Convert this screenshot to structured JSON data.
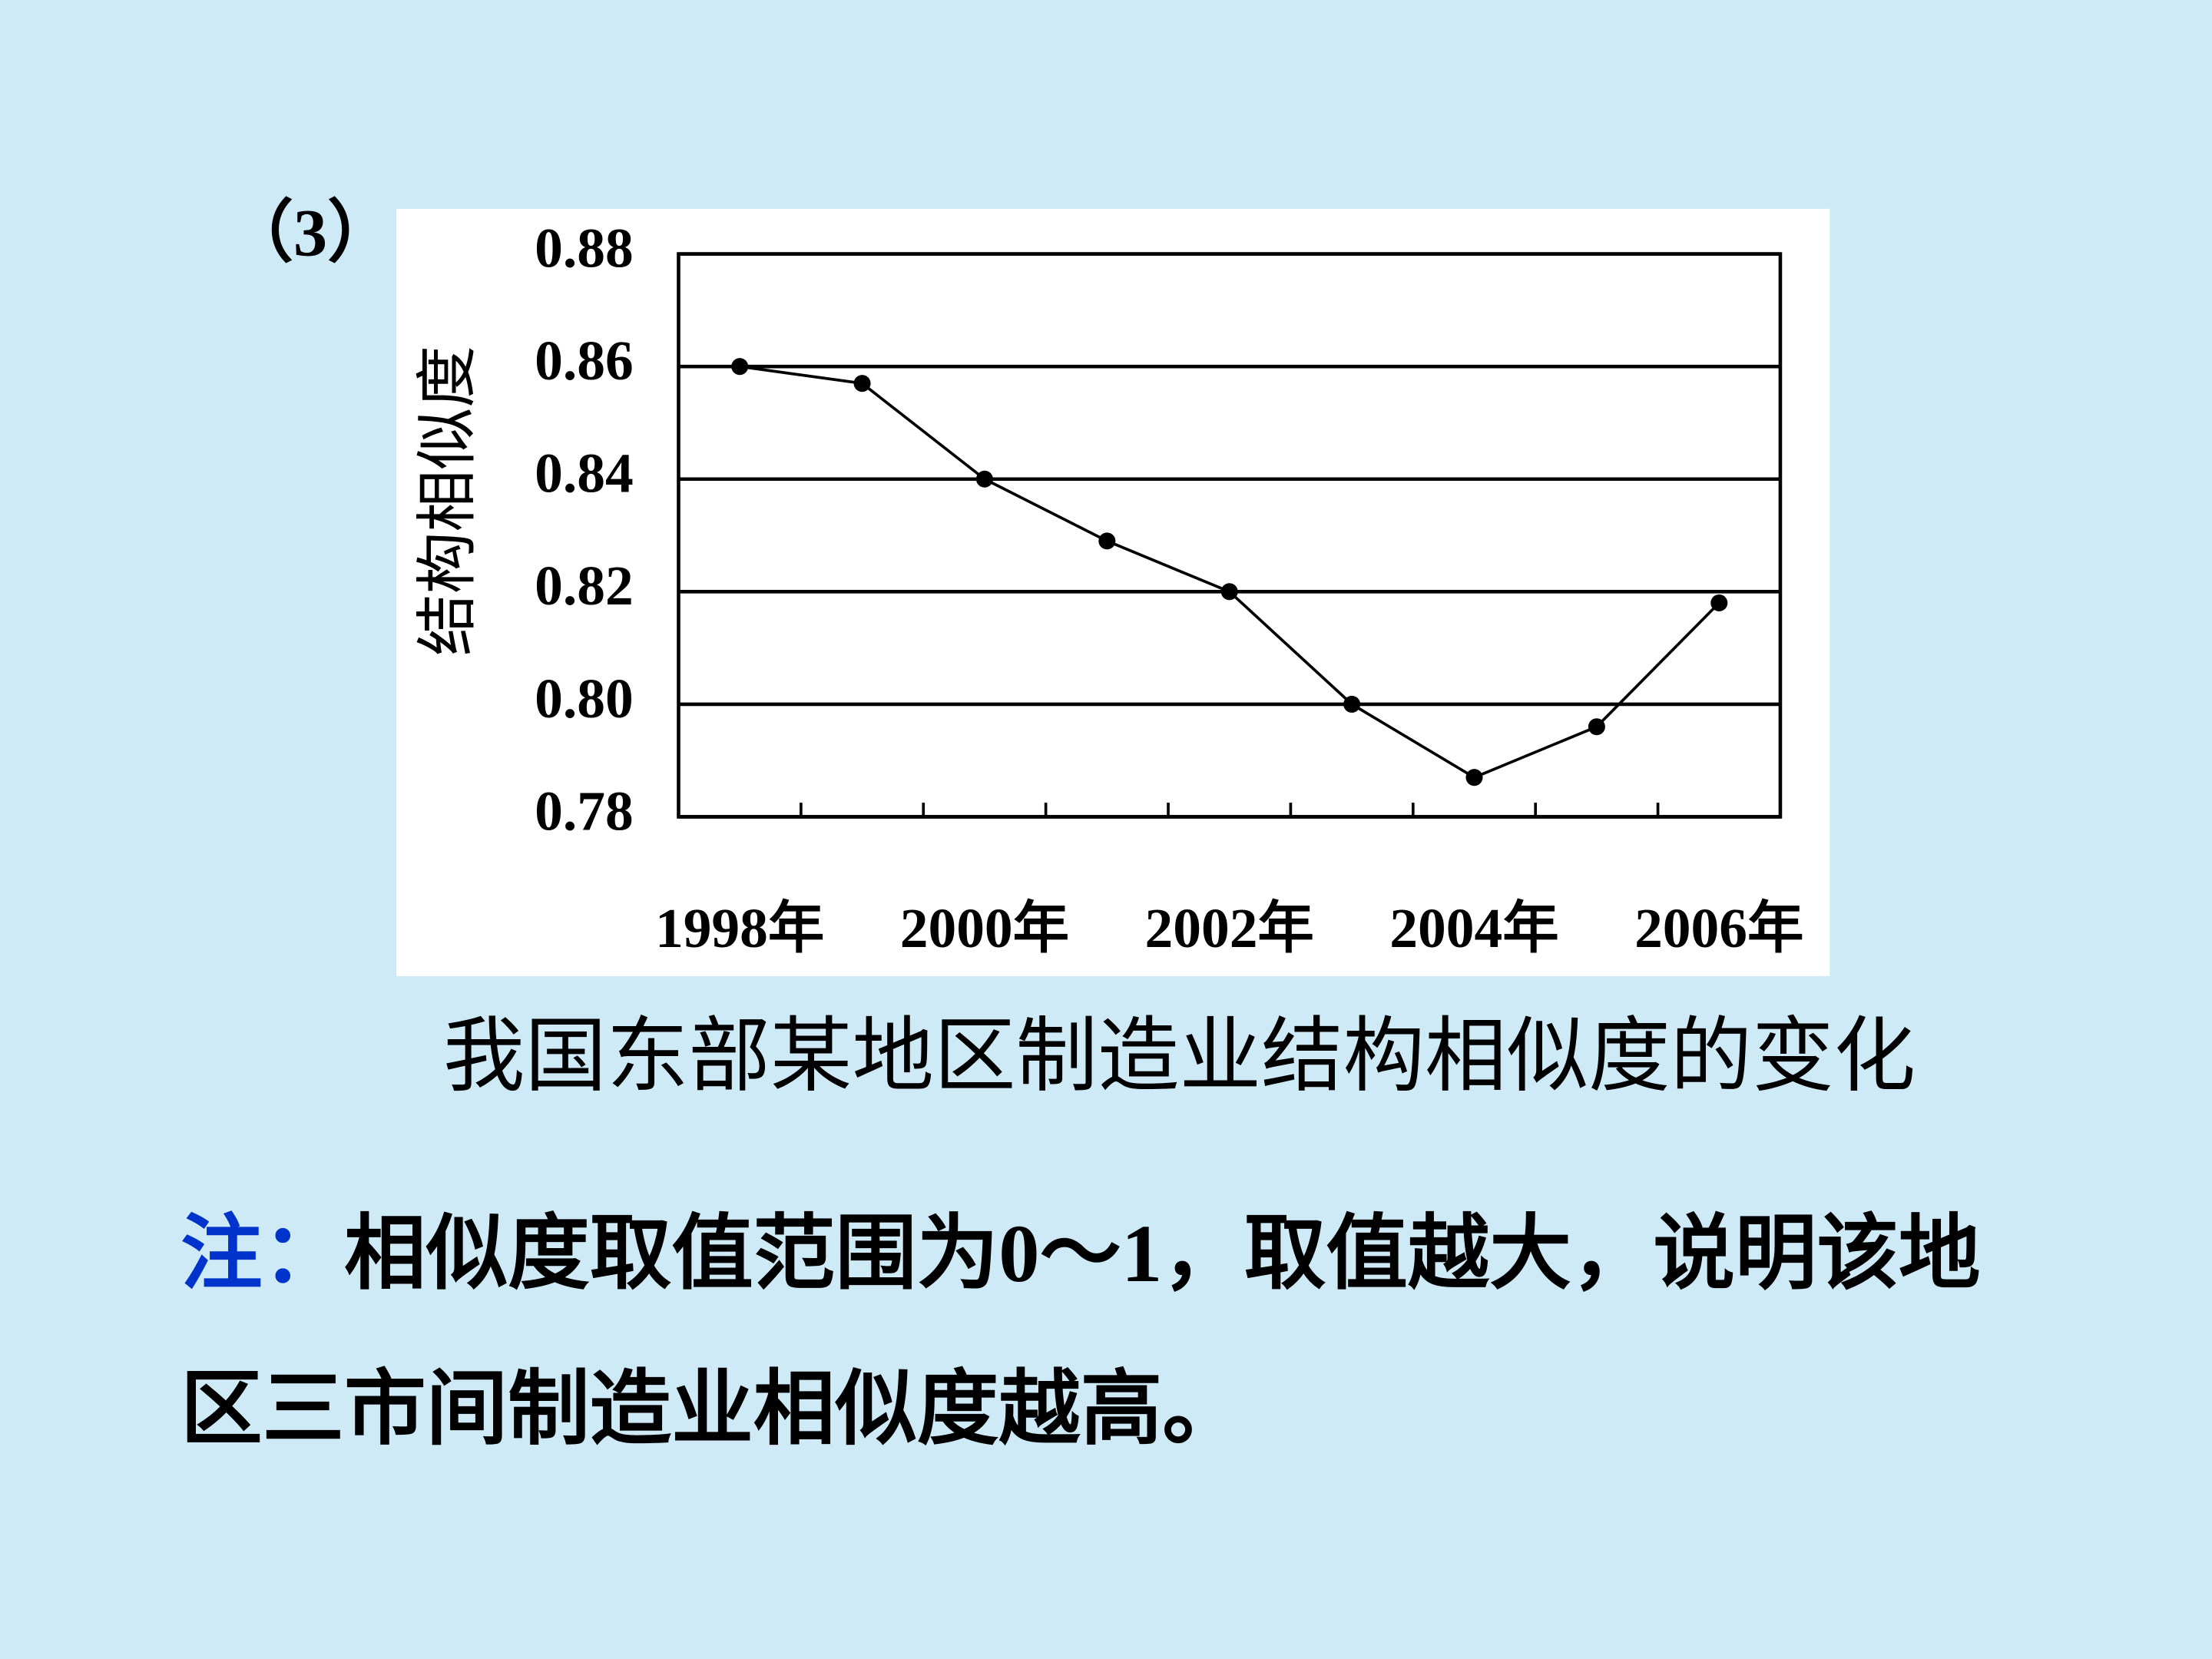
{
  "label": "（3）",
  "note": {
    "prefix": "注：",
    "lines": [
      "相似度取值范围为0～1，取值越大，说明该地",
      "区三市间制造业相似度越高。"
    ]
  },
  "chart_data": {
    "type": "line",
    "title": "我国东部某地区制造业结构相似度的变化",
    "ylabel": "结构相似度",
    "categories": [
      "1998年",
      null,
      "2000年",
      null,
      "2002年",
      null,
      "2004年",
      null,
      "2006年"
    ],
    "series": [
      {
        "name": "结构相似度",
        "color": "#000000",
        "values": [
          0.86,
          0.857,
          0.84,
          0.829,
          0.82,
          0.8,
          0.787,
          0.796,
          0.818
        ]
      }
    ],
    "ylim": [
      0.78,
      0.88
    ],
    "yticks": [
      0.78,
      {
        "value": 0.8,
        "label": "0.80"
      },
      0.82,
      0.84,
      0.86,
      0.88
    ],
    "grid": true
  }
}
